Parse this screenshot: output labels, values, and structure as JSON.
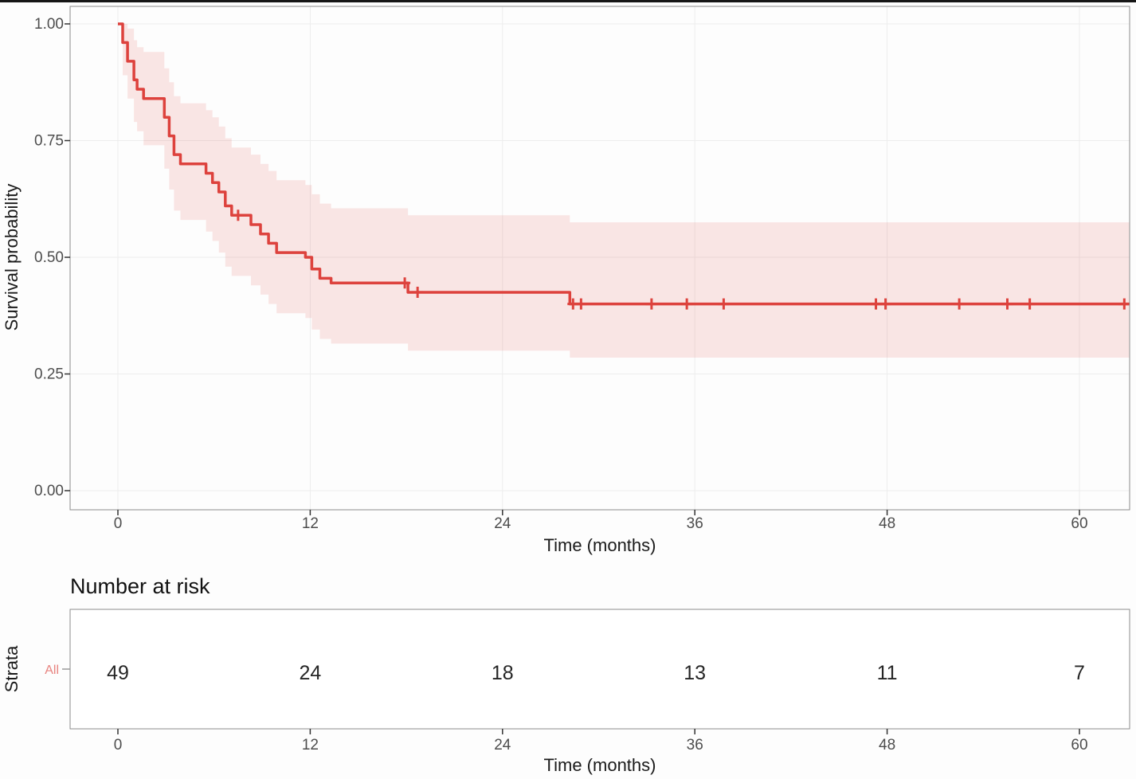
{
  "page": {
    "background": "#fdfdfd",
    "top_border_color": "#161616"
  },
  "style": {
    "grid_color": "#ededed",
    "panel_border_color": "#8c8c8c",
    "tick_color": "#333333",
    "tick_label_color": "#4d4d4d",
    "axis_title_color": "#1a1a1a",
    "count_color": "#262626"
  },
  "chart_data": {
    "type": "line",
    "chart_kind": "kaplan-meier-survival",
    "title": "",
    "xlabel": "Time (months)",
    "ylabel": "Survival probability",
    "xlim": [
      0,
      63.1
    ],
    "ylim": [
      0,
      1
    ],
    "x_ticks": [
      0,
      12,
      24,
      36,
      48,
      60
    ],
    "y_ticks": [
      1.0,
      0.75,
      0.5,
      0.25,
      0.0
    ],
    "y_tick_labels": [
      "1.00",
      "0.75",
      "0.50",
      "0.25",
      "0.00"
    ],
    "grid": true,
    "legend_position": "none",
    "series": [
      {
        "name": "All",
        "color": "#dd423d",
        "ci_fill": "rgba(221,66,61,0.13)",
        "end_time": 63.1,
        "steps": [
          [
            0,
            1.0
          ],
          [
            0.3,
            0.96
          ],
          [
            0.6,
            0.92
          ],
          [
            1.0,
            0.88
          ],
          [
            1.2,
            0.86
          ],
          [
            1.6,
            0.84
          ],
          [
            2.9,
            0.8
          ],
          [
            3.2,
            0.76
          ],
          [
            3.5,
            0.72
          ],
          [
            3.9,
            0.7
          ],
          [
            5.5,
            0.68
          ],
          [
            5.9,
            0.66
          ],
          [
            6.3,
            0.64
          ],
          [
            6.7,
            0.61
          ],
          [
            7.1,
            0.59
          ],
          [
            8.3,
            0.57
          ],
          [
            8.9,
            0.55
          ],
          [
            9.4,
            0.53
          ],
          [
            9.9,
            0.51
          ],
          [
            11.7,
            0.5
          ],
          [
            12.1,
            0.475
          ],
          [
            12.6,
            0.455
          ],
          [
            13.3,
            0.445
          ],
          [
            18.1,
            0.425
          ],
          [
            28.2,
            0.4
          ]
        ],
        "censors": [
          [
            7.5,
            0.59
          ],
          [
            17.9,
            0.445
          ],
          [
            18.7,
            0.425
          ],
          [
            28.4,
            0.4
          ],
          [
            28.9,
            0.4
          ],
          [
            33.3,
            0.4
          ],
          [
            35.5,
            0.4
          ],
          [
            37.8,
            0.4
          ],
          [
            47.3,
            0.4
          ],
          [
            47.9,
            0.4
          ],
          [
            52.5,
            0.4
          ],
          [
            55.5,
            0.4
          ],
          [
            56.9,
            0.4
          ],
          [
            62.8,
            0.4
          ]
        ],
        "ci": [
          [
            0.3,
            0.89,
            1.0
          ],
          [
            0.6,
            0.84,
            0.99
          ],
          [
            1.0,
            0.79,
            0.965
          ],
          [
            1.2,
            0.77,
            0.95
          ],
          [
            1.6,
            0.74,
            0.94
          ],
          [
            2.9,
            0.69,
            0.905
          ],
          [
            3.2,
            0.645,
            0.875
          ],
          [
            3.5,
            0.6,
            0.845
          ],
          [
            3.9,
            0.58,
            0.83
          ],
          [
            5.5,
            0.555,
            0.815
          ],
          [
            5.9,
            0.535,
            0.8
          ],
          [
            6.3,
            0.51,
            0.78
          ],
          [
            6.7,
            0.48,
            0.755
          ],
          [
            7.1,
            0.46,
            0.735
          ],
          [
            8.3,
            0.44,
            0.72
          ],
          [
            8.9,
            0.42,
            0.7
          ],
          [
            9.4,
            0.4,
            0.685
          ],
          [
            9.9,
            0.38,
            0.665
          ],
          [
            11.7,
            0.37,
            0.655
          ],
          [
            12.1,
            0.345,
            0.635
          ],
          [
            12.6,
            0.325,
            0.615
          ],
          [
            13.3,
            0.315,
            0.605
          ],
          [
            18.1,
            0.3,
            0.59
          ],
          [
            28.2,
            0.285,
            0.575
          ]
        ]
      }
    ],
    "risk_table": {
      "title": "Number at risk",
      "ylabel": "Strata",
      "xlabel": "Time (months)",
      "times": [
        0,
        12,
        24,
        36,
        48,
        60
      ],
      "strata": [
        {
          "label": "All",
          "color": "#e8837f",
          "counts": [
            49,
            24,
            18,
            13,
            11,
            7
          ]
        }
      ]
    }
  }
}
